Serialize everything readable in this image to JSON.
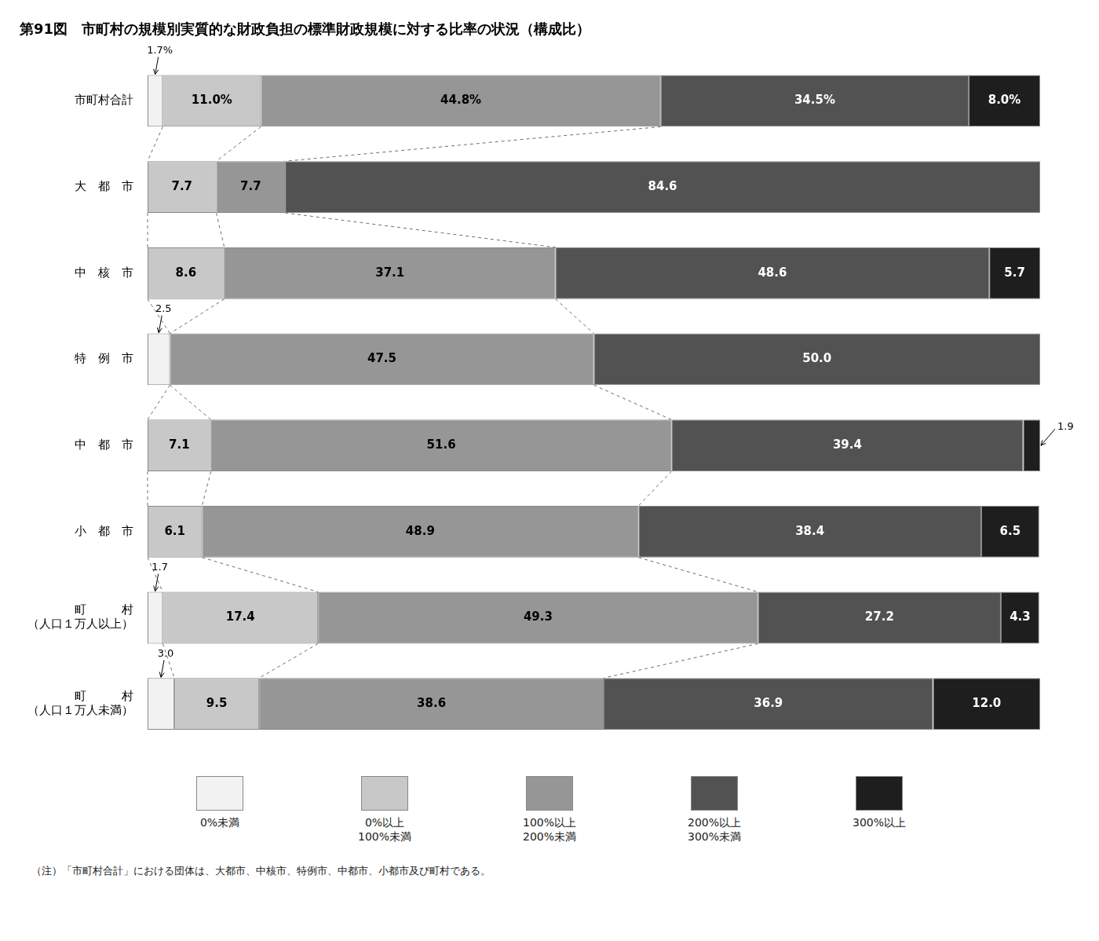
{
  "chart_data": {
    "type": "bar",
    "orientation": "horizontal",
    "stacked": true,
    "title": "第91図　市町村の規模別実質的な財政負担の標準財政規模に対する比率の状況（構成比）",
    "categories": [
      "市町村合計",
      "大　都　市",
      "中　核　市",
      "特　例　市",
      "中　都　市",
      "小　都　市",
      "町　　　村\n（人口１万人以上）",
      "町　　　村\n（人口１万人未満）"
    ],
    "series": [
      {
        "name": "0%未満",
        "color": "#f2f2f2",
        "values": [
          1.7,
          0.0,
          0.0,
          2.5,
          0.0,
          0.0,
          1.7,
          3.0
        ],
        "value_labels": [
          "1.7%",
          null,
          null,
          "2.5",
          null,
          null,
          "1.7",
          "3.0"
        ]
      },
      {
        "name": "0%以上\n100%未満",
        "color": "#c8c8c8",
        "values": [
          11.0,
          7.7,
          8.6,
          0.0,
          7.1,
          6.1,
          17.4,
          9.5
        ],
        "value_labels": [
          "11.0%",
          "7.7",
          "8.6",
          null,
          "7.1",
          "6.1",
          "17.4",
          "9.5"
        ]
      },
      {
        "name": "100%以上\n200%未満",
        "color": "#969696",
        "values": [
          44.8,
          7.7,
          37.1,
          47.5,
          51.6,
          48.9,
          49.3,
          38.6
        ],
        "value_labels": [
          "44.8%",
          "7.7",
          "37.1",
          "47.5",
          "51.6",
          "48.9",
          "49.3",
          "38.6"
        ]
      },
      {
        "name": "200%以上\n300%未満",
        "color": "#525252",
        "values": [
          34.5,
          84.6,
          48.6,
          50.0,
          39.4,
          38.4,
          27.2,
          36.9
        ],
        "value_labels": [
          "34.5%",
          "84.6",
          "48.6",
          "50.0",
          "39.4",
          "38.4",
          "27.2",
          "36.9"
        ]
      },
      {
        "name": "300%以上",
        "color": "#1e1e1e",
        "values": [
          8.0,
          0.0,
          5.7,
          0.0,
          1.9,
          6.5,
          4.3,
          12.0
        ],
        "value_labels": [
          "8.0%",
          null,
          "5.7",
          null,
          "1.9",
          "6.5",
          "4.3",
          "12.0"
        ]
      }
    ],
    "xlim": [
      0,
      100
    ],
    "tick_labels": "y",
    "grid": false,
    "data_labels": true,
    "legend": "bottom",
    "note": "（注）「市町村合計」における団体は、大都市、中核市、特例市、中都市、小都市及び町村である。"
  }
}
